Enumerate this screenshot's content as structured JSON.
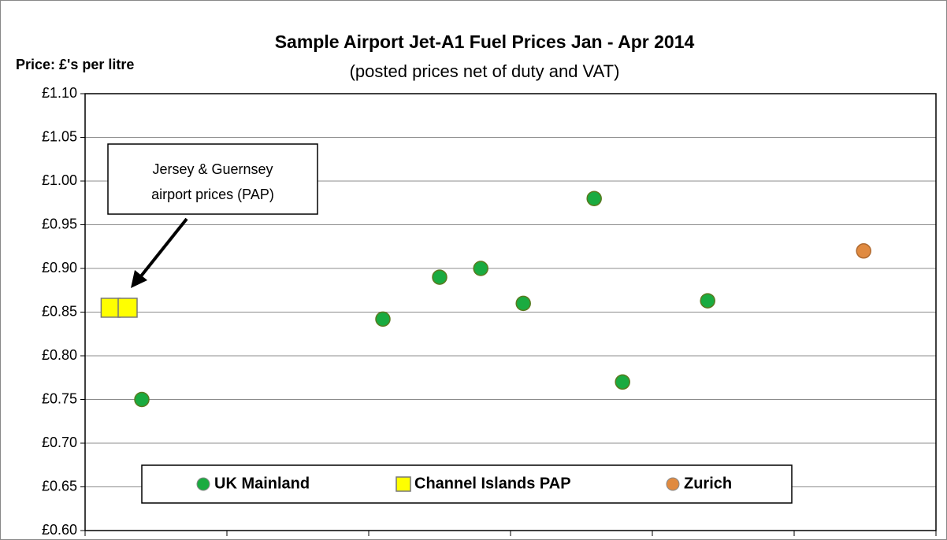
{
  "chart_data": {
    "type": "scatter",
    "title": "Sample Airport Jet-A1 Fuel Prices Jan - Apr 2014",
    "subtitle": "(posted prices net of duty and VAT)",
    "y_label": "Price: £'s per litre",
    "annotation": [
      "Jersey & Guernsey",
      "airport prices (PAP)"
    ],
    "xlim": [
      0,
      6
    ],
    "xticks": [
      0,
      1,
      2,
      3,
      4,
      5,
      6
    ],
    "ylim": [
      0.6,
      1.1
    ],
    "yticks": [
      {
        "value": 0.6,
        "label": "£0.60"
      },
      {
        "value": 0.65,
        "label": "£0.65"
      },
      {
        "value": 0.7,
        "label": "£0.70"
      },
      {
        "value": 0.75,
        "label": "£0.75"
      },
      {
        "value": 0.8,
        "label": "£0.80"
      },
      {
        "value": 0.85,
        "label": "£0.85"
      },
      {
        "value": 0.9,
        "label": "£0.90"
      },
      {
        "value": 0.95,
        "label": "£0.95"
      },
      {
        "value": 1.0,
        "label": "£1.00"
      },
      {
        "value": 1.05,
        "label": "£1.05"
      },
      {
        "value": 1.1,
        "label": "£1.10"
      }
    ],
    "grid": true,
    "series": [
      {
        "name": "UK Mainland",
        "color": "#1aab40",
        "marker": "circle",
        "x": [
          0.4,
          2.1,
          2.5,
          2.79,
          3.09,
          3.59,
          3.79,
          4.39
        ],
        "values": [
          0.75,
          0.842,
          0.89,
          0.9,
          0.86,
          0.98,
          0.77,
          0.863
        ]
      },
      {
        "name": "Channel Islands PAP",
        "color": "#ffff00",
        "marker": "square",
        "x": [
          0.18,
          0.3
        ],
        "values": [
          0.855,
          0.855
        ]
      },
      {
        "name": "Zurich",
        "color": "#e08a40",
        "marker": "circle",
        "x": [
          5.49
        ],
        "values": [
          0.92
        ]
      }
    ]
  }
}
